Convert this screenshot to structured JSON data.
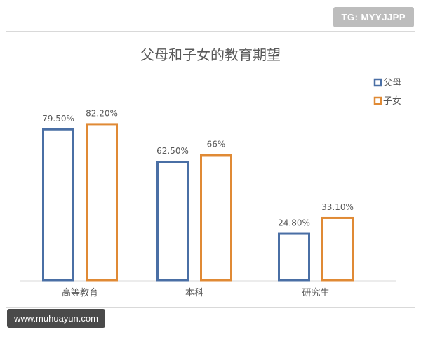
{
  "watermark_top": "TG: MYYJJPP",
  "watermark_bottom": "www.muhuayun.com",
  "colors": {
    "parent": "#4a6fa5",
    "child": "#e08a35",
    "text": "#595959",
    "axis": "#d9d9d9"
  },
  "chart_data": {
    "type": "bar",
    "title": "父母和子女的教育期望",
    "categories": [
      "高等教育",
      "本科",
      "研究生"
    ],
    "series": [
      {
        "name": "父母",
        "values": [
          79.5,
          62.5,
          24.8
        ],
        "labels": [
          "79.50%",
          "62.50%",
          "24.80%"
        ]
      },
      {
        "name": "子女",
        "values": [
          82.2,
          66,
          33.1
        ],
        "labels": [
          "82.20%",
          "66%",
          "33.10%"
        ]
      }
    ],
    "ylim": [
      0,
      100
    ],
    "legend": "top-right",
    "grid": false
  }
}
